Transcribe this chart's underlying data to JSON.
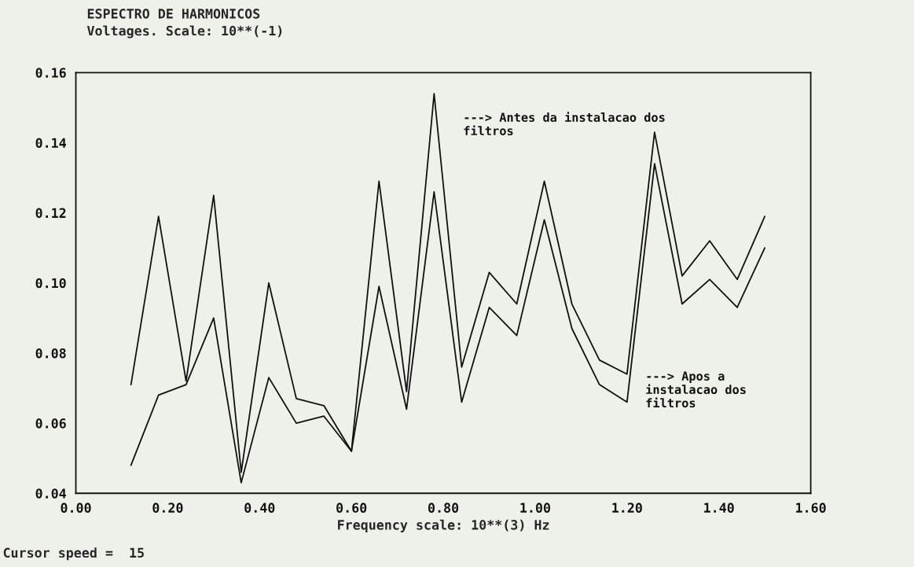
{
  "chart_data": {
    "type": "line",
    "title": "ESPECTRO DE HARMONICOS",
    "subtitle": "Voltages. Scale: 10**(-1)",
    "xlabel": "Frequency scale: 10**(3) Hz",
    "annotations": [
      "Cursor speed =  15"
    ],
    "x": [
      0.12,
      0.18,
      0.24,
      0.3,
      0.36,
      0.42,
      0.48,
      0.54,
      0.6,
      0.66,
      0.72,
      0.78,
      0.84,
      0.9,
      0.96,
      1.02,
      1.08,
      1.14,
      1.2,
      1.26,
      1.32,
      1.38,
      1.44,
      1.5
    ],
    "series": [
      {
        "name": "---> Antes da instalacao dos\nfiltros",
        "color": "#111111",
        "values": [
          0.071,
          0.119,
          0.072,
          0.125,
          0.046,
          0.1,
          0.067,
          0.065,
          0.052,
          0.129,
          0.069,
          0.154,
          0.076,
          0.103,
          0.094,
          0.129,
          0.094,
          0.078,
          0.074,
          0.143,
          0.102,
          0.112,
          0.101,
          0.119
        ]
      },
      {
        "name": "---> Apos a\ninstalacao dos\nfiltros",
        "color": "#111111",
        "values": [
          0.048,
          0.068,
          0.071,
          0.09,
          0.043,
          0.073,
          0.06,
          0.062,
          0.052,
          0.099,
          0.064,
          0.126,
          0.066,
          0.093,
          0.085,
          0.118,
          0.087,
          0.071,
          0.066,
          0.134,
          0.094,
          0.101,
          0.093,
          0.11
        ]
      }
    ],
    "xlim": [
      0,
      1.6
    ],
    "ylim": [
      0.04,
      0.16
    ],
    "xticks": [
      {
        "value": 0,
        "label": "0.00"
      },
      {
        "value": 0.2,
        "label": "0.20"
      },
      {
        "value": 0.4,
        "label": "0.40"
      },
      {
        "value": 0.6,
        "label": "0.60"
      },
      {
        "value": 0.8,
        "label": "0.80"
      },
      {
        "value": 1.0,
        "label": "1.00"
      },
      {
        "value": 1.2,
        "label": "1.20"
      },
      {
        "value": 1.4,
        "label": "1.40"
      },
      {
        "value": 1.6,
        "label": "1.60"
      }
    ],
    "yticks": [
      {
        "value": 0.04,
        "label": "0.04"
      },
      {
        "value": 0.06,
        "label": "0.06"
      },
      {
        "value": 0.08,
        "label": "0.08"
      },
      {
        "value": 0.1,
        "label": "0.10"
      },
      {
        "value": 0.12,
        "label": "0.12"
      },
      {
        "value": 0.14,
        "label": "0.14"
      },
      {
        "value": 0.16,
        "label": "0.16"
      }
    ],
    "grid": false,
    "legend": false,
    "marker": "none",
    "line_style": "solid"
  }
}
